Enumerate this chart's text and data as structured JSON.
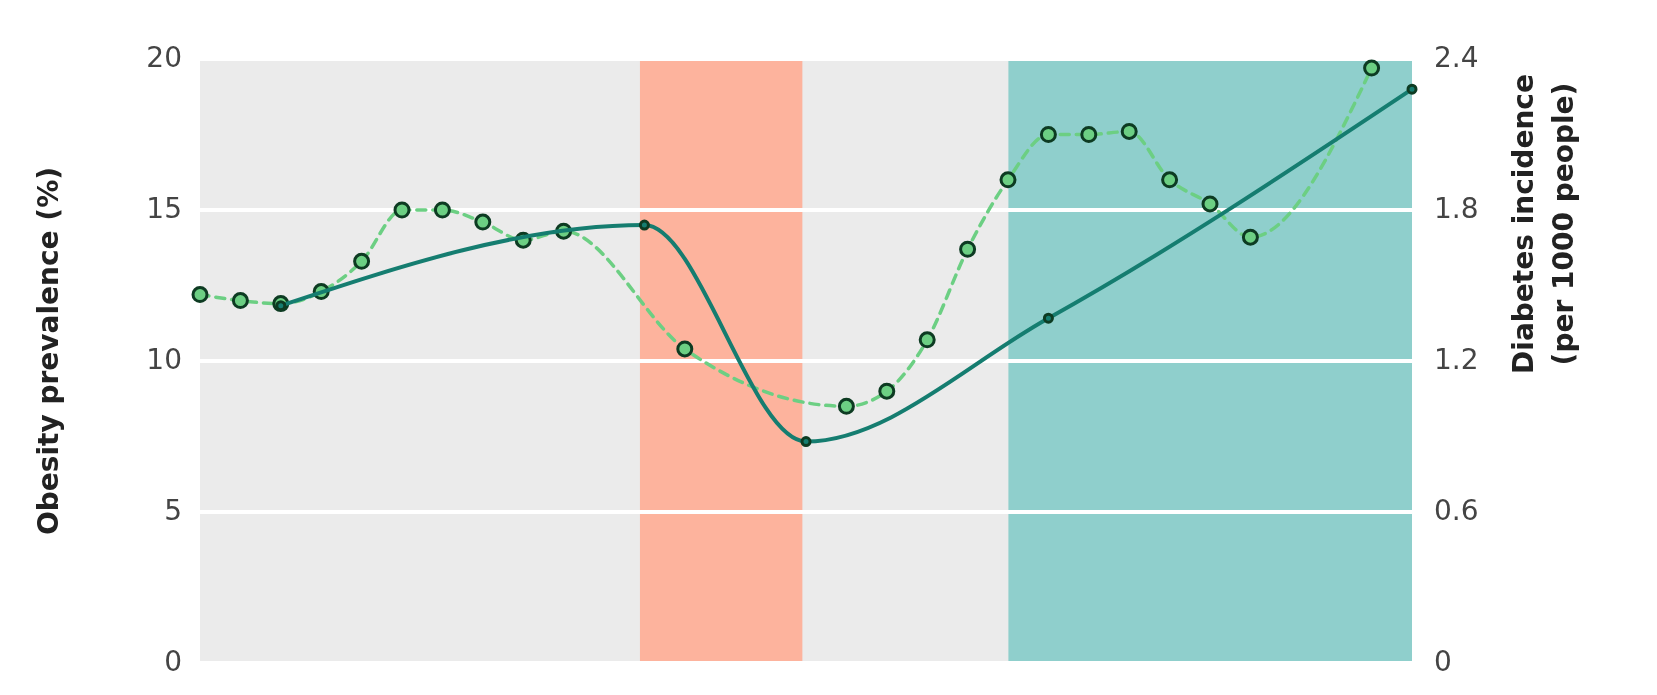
{
  "chart_data": {
    "type": "line",
    "ylabel": "Obesity prevalence (%)",
    "y2label": "Diabetes incidence\n(per 1000 people)",
    "categories": [
      null,
      null,
      null,
      null,
      null,
      null,
      null,
      null,
      null,
      null,
      null,
      null,
      null,
      null,
      null,
      null,
      null,
      null,
      null,
      null,
      null,
      null,
      null,
      null,
      null,
      null,
      null,
      null,
      null,
      null,
      null
    ],
    "series": [
      {
        "color": "#6ccf83",
        "line_style": "dashed",
        "values": [
          12.2,
          12.0,
          11.9,
          12.3,
          13.3,
          15.0,
          15.0,
          14.6,
          14.0,
          14.3,
          null,
          null,
          10.4,
          null,
          null,
          null,
          8.5,
          9.0,
          10.7,
          13.7,
          16.0,
          17.5,
          17.5,
          17.6,
          16.0,
          15.2,
          14.1,
          null,
          null,
          19.7,
          null
        ]
      },
      {
        "color": "#157d70",
        "line_style": "solid",
        "axis": "y2",
        "values": [
          null,
          null,
          1.42,
          null,
          null,
          null,
          null,
          null,
          null,
          null,
          null,
          1.74,
          null,
          null,
          null,
          0.88,
          null,
          null,
          null,
          null,
          null,
          1.37,
          null,
          null,
          null,
          null,
          null,
          null,
          null,
          null,
          2.28
        ]
      }
    ],
    "ylim": [
      0,
      20
    ],
    "yticks": [
      0,
      5,
      10,
      15,
      20
    ],
    "y2lim": [
      0,
      2.4
    ],
    "y2ticks": [
      0,
      0.6,
      1.2,
      1.8,
      2.4
    ],
    "grid": "y",
    "marker": "circle"
  }
}
